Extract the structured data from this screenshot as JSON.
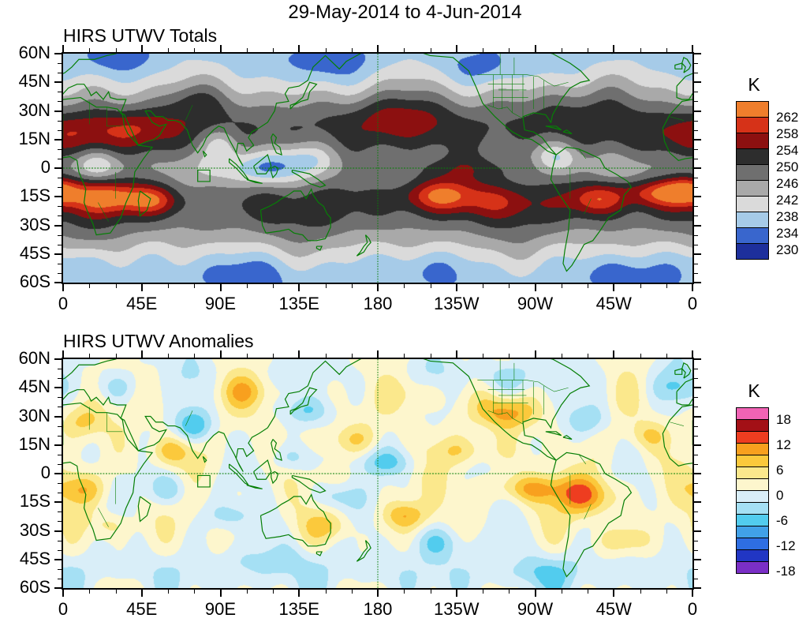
{
  "figure_title": "29-May-2014 to 4-Jun-2014",
  "map_outline_color": "#067f06",
  "chart_data": [
    {
      "type": "heatmap",
      "subtype": "filled_contour_map",
      "title": "HIRS UTWV Totals",
      "units": "K",
      "projection": "cylindrical_equidistant",
      "lon_range": [
        0,
        360
      ],
      "lat_range": [
        -60,
        60
      ],
      "x_ticks": [
        {
          "label": "0",
          "lon": 0
        },
        {
          "label": "45E",
          "lon": 45
        },
        {
          "label": "90E",
          "lon": 90
        },
        {
          "label": "135E",
          "lon": 135
        },
        {
          "label": "180",
          "lon": 180
        },
        {
          "label": "135W",
          "lon": 225
        },
        {
          "label": "90W",
          "lon": 270
        },
        {
          "label": "45W",
          "lon": 315
        },
        {
          "label": "0",
          "lon": 360
        }
      ],
      "y_ticks": [
        {
          "label": "60N",
          "lat": 60
        },
        {
          "label": "45N",
          "lat": 45
        },
        {
          "label": "30N",
          "lat": 30
        },
        {
          "label": "15N",
          "lat": 15
        },
        {
          "label": "0",
          "lat": 0
        },
        {
          "label": "15S",
          "lat": -15
        },
        {
          "label": "30S",
          "lat": -30
        },
        {
          "label": "45S",
          "lat": -45
        },
        {
          "label": "60S",
          "lat": -60
        }
      ],
      "levels": [
        230,
        234,
        238,
        242,
        246,
        250,
        254,
        258,
        262
      ],
      "colors": [
        "#1d2f9c",
        "#3966cd",
        "#a6cbe8",
        "#dadada",
        "#a9a9a9",
        "#6f6f6f",
        "#2d2d2d",
        "#8c1010",
        "#d63218",
        "#ef7e2c"
      ],
      "colorbar": {
        "title": "K",
        "labels": [
          {
            "text": "262",
            "boundary": 1
          },
          {
            "text": "258",
            "boundary": 2
          },
          {
            "text": "254",
            "boundary": 3
          },
          {
            "text": "250",
            "boundary": 4
          },
          {
            "text": "246",
            "boundary": 5
          },
          {
            "text": "242",
            "boundary": 6
          },
          {
            "text": "238",
            "boundary": 7
          },
          {
            "text": "234",
            "boundary": 8
          },
          {
            "text": "230",
            "boundary": 9
          }
        ]
      },
      "dashed_lines": [
        {
          "lat": 0
        },
        {
          "lon": 180
        }
      ],
      "outline_box": {
        "lon_min": 77,
        "lon_max": 84,
        "lat_min": -7,
        "lat_max": -1
      },
      "field_model": {
        "base": 243,
        "zonal": [
          {
            "lat": 20,
            "amp": 8,
            "s": 12
          },
          {
            "lat": -20,
            "amp": 8,
            "s": 12
          },
          {
            "lat": 0,
            "amp": -2,
            "s": 6
          },
          {
            "lat": 62,
            "amp": -7,
            "s": 14
          },
          {
            "lat": -62,
            "amp": -7,
            "s": 14
          }
        ],
        "noise": [
          {
            "a": 1.8,
            "kx": 3,
            "ky": 3,
            "px": 0.7,
            "py": 1.3
          },
          {
            "a": 1.4,
            "kx": 6,
            "ky": 4,
            "px": 2.9,
            "py": 0.2
          },
          {
            "a": 1.0,
            "kx": 11,
            "ky": 6,
            "px": 4.4,
            "py": 2.1
          }
        ],
        "bumps": [
          {
            "lon": 25,
            "lat": -15,
            "amp": 14,
            "sx": 16,
            "sy": 6
          },
          {
            "lon": 52,
            "lat": -17,
            "amp": 9,
            "sx": 10,
            "sy": 5
          },
          {
            "lon": 12,
            "lat": 18,
            "amp": 8,
            "sx": 22,
            "sy": 8
          },
          {
            "lon": 45,
            "lat": 22,
            "amp": 5,
            "sx": 14,
            "sy": 7
          },
          {
            "lon": 215,
            "lat": -14,
            "amp": 14,
            "sx": 15,
            "sy": 6
          },
          {
            "lon": 250,
            "lat": -17,
            "amp": 6,
            "sx": 14,
            "sy": 6
          },
          {
            "lon": 305,
            "lat": -16,
            "amp": 12,
            "sx": 11,
            "sy": 6
          },
          {
            "lon": 341,
            "lat": -13,
            "amp": 12,
            "sx": 16,
            "sy": 5
          },
          {
            "lon": 357,
            "lat": -11,
            "amp": 9,
            "sx": 9,
            "sy": 5
          },
          {
            "lon": 190,
            "lat": 27,
            "amp": 5,
            "sx": 24,
            "sy": 8
          },
          {
            "lon": 230,
            "lat": 0,
            "amp": 7,
            "sx": 32,
            "sy": 5
          },
          {
            "lon": 285,
            "lat": 32,
            "amp": 4,
            "sx": 18,
            "sy": 8
          },
          {
            "lon": 75,
            "lat": 35,
            "amp": 4,
            "sx": 12,
            "sy": 6
          },
          {
            "lon": 115,
            "lat": 0,
            "amp": -12,
            "sx": 16,
            "sy": 7
          },
          {
            "lon": 140,
            "lat": 6,
            "amp": -6,
            "sx": 11,
            "sy": 6
          },
          {
            "lon": 90,
            "lat": 13,
            "amp": -9,
            "sx": 8,
            "sy": 6
          },
          {
            "lon": 283,
            "lat": 6,
            "amp": -10,
            "sx": 9,
            "sy": 6
          },
          {
            "lon": 20,
            "lat": 2,
            "amp": -6,
            "sx": 8,
            "sy": 5
          },
          {
            "lon": 150,
            "lat": 55,
            "amp": -5,
            "sx": 18,
            "sy": 8
          },
          {
            "lon": 240,
            "lat": 52,
            "amp": -4,
            "sx": 14,
            "sy": 6
          },
          {
            "lon": 30,
            "lat": 56,
            "amp": -4,
            "sx": 14,
            "sy": 6
          },
          {
            "lon": 100,
            "lat": -55,
            "amp": -5,
            "sx": 22,
            "sy": 8
          },
          {
            "lon": 205,
            "lat": -53,
            "amp": -4,
            "sx": 18,
            "sy": 7
          },
          {
            "lon": 320,
            "lat": -55,
            "amp": -6,
            "sx": 16,
            "sy": 7
          },
          {
            "lon": 10,
            "lat": -50,
            "amp": -4,
            "sx": 13,
            "sy": 6
          }
        ]
      }
    },
    {
      "type": "heatmap",
      "subtype": "filled_contour_map",
      "title": "HIRS UTWV Anomalies",
      "units": "K",
      "projection": "cylindrical_equidistant",
      "lon_range": [
        0,
        360
      ],
      "lat_range": [
        -60,
        60
      ],
      "x_ticks": [
        {
          "label": "0",
          "lon": 0
        },
        {
          "label": "45E",
          "lon": 45
        },
        {
          "label": "90E",
          "lon": 90
        },
        {
          "label": "135E",
          "lon": 135
        },
        {
          "label": "180",
          "lon": 180
        },
        {
          "label": "135W",
          "lon": 225
        },
        {
          "label": "90W",
          "lon": 270
        },
        {
          "label": "45W",
          "lon": 315
        },
        {
          "label": "0",
          "lon": 360
        }
      ],
      "y_ticks": [
        {
          "label": "60N",
          "lat": 60
        },
        {
          "label": "45N",
          "lat": 45
        },
        {
          "label": "30N",
          "lat": 30
        },
        {
          "label": "15N",
          "lat": 15
        },
        {
          "label": "0",
          "lat": 0
        },
        {
          "label": "15S",
          "lat": -15
        },
        {
          "label": "30S",
          "lat": -30
        },
        {
          "label": "45S",
          "lat": -45
        },
        {
          "label": "60S",
          "lat": -60
        }
      ],
      "levels": [
        -18,
        -15,
        -12,
        -9,
        -6,
        -3,
        0,
        3,
        6,
        9,
        12,
        15,
        18
      ],
      "colors": [
        "#7a2fc6",
        "#2136c4",
        "#2e6ee2",
        "#41a1e8",
        "#52ccee",
        "#a5e0f4",
        "#d9eef8",
        "#fdf6cd",
        "#fbe88c",
        "#fbc93c",
        "#f8a01e",
        "#ee3d20",
        "#a31016",
        "#f163b5"
      ],
      "colorbar": {
        "title": "K",
        "labels": [
          {
            "text": "18",
            "boundary": 1
          },
          {
            "text": "12",
            "boundary": 3
          },
          {
            "text": "6",
            "boundary": 5
          },
          {
            "text": "0",
            "boundary": 7
          },
          {
            "text": "-6",
            "boundary": 9
          },
          {
            "text": "-12",
            "boundary": 11
          },
          {
            "text": "-18",
            "boundary": 13
          }
        ]
      },
      "dashed_lines": [
        {
          "lat": 0
        },
        {
          "lon": 180
        }
      ],
      "outline_box": {
        "lon_min": 77,
        "lon_max": 84,
        "lat_min": -7,
        "lat_max": -1
      },
      "field_model": {
        "base": 1.0,
        "zonal": [
          {
            "lat": -52,
            "amp": -3,
            "s": 9
          },
          {
            "lat": 55,
            "amp": -1.5,
            "s": 10
          }
        ],
        "noise": [
          {
            "a": 2.2,
            "kx": 5,
            "ky": 3,
            "px": 1.9,
            "py": 0.6
          },
          {
            "a": 1.8,
            "kx": 8,
            "ky": 5,
            "px": 0.3,
            "py": 2.4
          },
          {
            "a": 1.3,
            "kx": 13,
            "ky": 7,
            "px": 3.7,
            "py": 1.2
          }
        ],
        "bumps": [
          {
            "lon": 255,
            "lat": 32,
            "amp": 9,
            "sx": 12,
            "sy": 6
          },
          {
            "lon": 300,
            "lat": -12,
            "amp": 11,
            "sx": 11,
            "sy": 7
          },
          {
            "lon": 268,
            "lat": -8,
            "amp": 8,
            "sx": 16,
            "sy": 5
          },
          {
            "lon": 196,
            "lat": -22,
            "amp": 7,
            "sx": 9,
            "sy": 5
          },
          {
            "lon": 152,
            "lat": -28,
            "amp": 5,
            "sx": 9,
            "sy": 5
          },
          {
            "lon": 10,
            "lat": -8,
            "amp": 8,
            "sx": 9,
            "sy": 6
          },
          {
            "lon": 28,
            "lat": -27,
            "amp": 5,
            "sx": 8,
            "sy": 5
          },
          {
            "lon": 62,
            "lat": 12,
            "amp": 7,
            "sx": 8,
            "sy": 5
          },
          {
            "lon": 12,
            "lat": 27,
            "amp": 6,
            "sx": 9,
            "sy": 6
          },
          {
            "lon": 105,
            "lat": 43,
            "amp": 6,
            "sx": 11,
            "sy": 6
          },
          {
            "lon": 335,
            "lat": 20,
            "amp": 5,
            "sx": 9,
            "sy": 5
          },
          {
            "lon": 205,
            "lat": 42,
            "amp": 4,
            "sx": 12,
            "sy": 6
          },
          {
            "lon": 320,
            "lat": -35,
            "amp": 5,
            "sx": 10,
            "sy": 5
          },
          {
            "lon": 230,
            "lat": 12,
            "amp": 5,
            "sx": 12,
            "sy": 5
          },
          {
            "lon": 165,
            "lat": 18,
            "amp": 4,
            "sx": 10,
            "sy": 5
          },
          {
            "lon": 75,
            "lat": 25,
            "amp": -9,
            "sx": 8,
            "sy": 6
          },
          {
            "lon": 60,
            "lat": -8,
            "amp": -7,
            "sx": 9,
            "sy": 6
          },
          {
            "lon": 95,
            "lat": -22,
            "amp": -5,
            "sx": 10,
            "sy": 5
          },
          {
            "lon": 140,
            "lat": 33,
            "amp": -6,
            "sx": 9,
            "sy": 5
          },
          {
            "lon": 183,
            "lat": 6,
            "amp": -6,
            "sx": 13,
            "sy": 5
          },
          {
            "lon": 155,
            "lat": -12,
            "amp": -6,
            "sx": 9,
            "sy": 5
          },
          {
            "lon": 215,
            "lat": -36,
            "amp": -6,
            "sx": 11,
            "sy": 6
          },
          {
            "lon": 250,
            "lat": 50,
            "amp": -5,
            "sx": 13,
            "sy": 6
          },
          {
            "lon": 300,
            "lat": 28,
            "amp": -6,
            "sx": 9,
            "sy": 6
          },
          {
            "lon": 350,
            "lat": 45,
            "amp": -4,
            "sx": 9,
            "sy": 5
          },
          {
            "lon": 30,
            "lat": 45,
            "amp": -4,
            "sx": 9,
            "sy": 5
          },
          {
            "lon": 120,
            "lat": -45,
            "amp": -4,
            "sx": 14,
            "sy": 6
          },
          {
            "lon": 272,
            "lat": -52,
            "amp": -4,
            "sx": 14,
            "sy": 6
          },
          {
            "lon": 130,
            "lat": 8,
            "amp": -5,
            "sx": 9,
            "sy": 5
          }
        ]
      }
    }
  ]
}
